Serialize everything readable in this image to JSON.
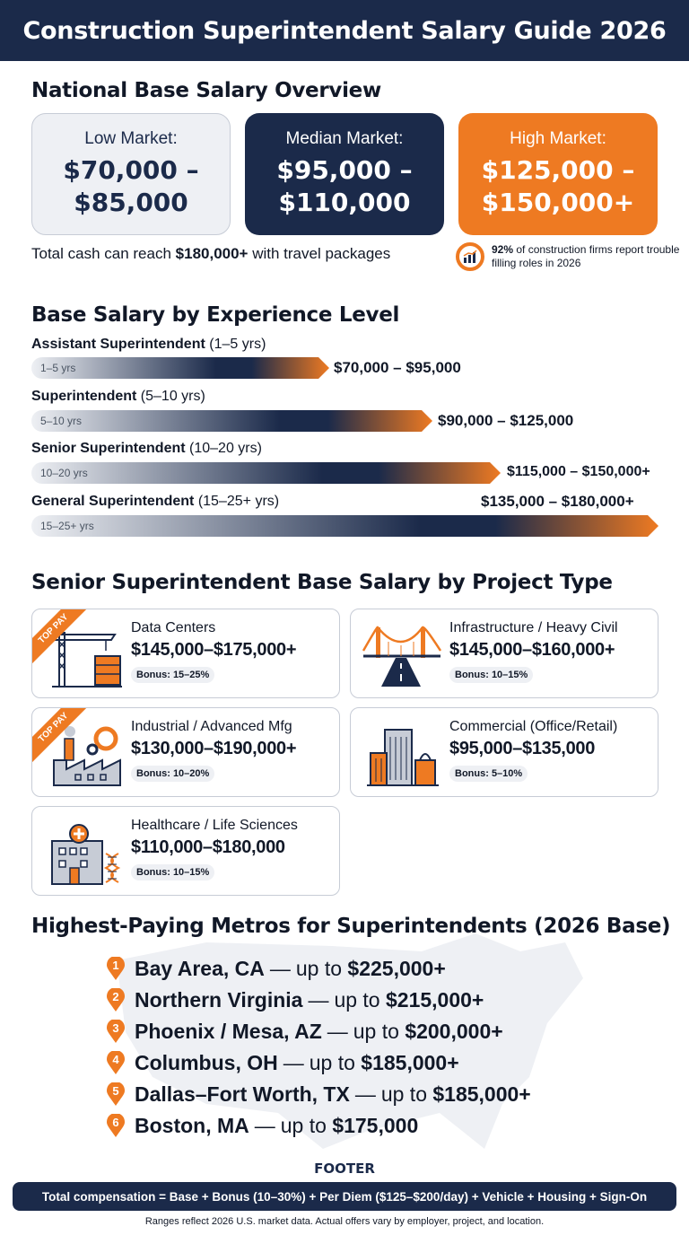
{
  "header": {
    "title": "Construction Superintendent Salary Guide 2026"
  },
  "overview": {
    "title": "National Base Salary Overview",
    "cards": [
      {
        "label": "Low Market:",
        "line1": "$70,000 –",
        "line2": "$85,000"
      },
      {
        "label": "Median Market:",
        "line1": "$95,000 –",
        "line2": "$110,000"
      },
      {
        "label": "High Market:",
        "line1": "$125,000 –",
        "line2": "$150,000+"
      }
    ],
    "total_cash_pre": "Total cash can reach ",
    "total_cash_amount": "$180,000+",
    "total_cash_post": " with travel packages",
    "stat_pct": "92%",
    "stat_text": " of construction firms report trouble filling roles in 2026"
  },
  "experience": {
    "title": "Base Salary by Experience Level",
    "levels": [
      {
        "role": "Assistant Superintendent",
        "years_paren": "(1–5 yrs)",
        "bar_label": "1–5 yrs",
        "range": "$70,000 – $95,000"
      },
      {
        "role": "Superintendent",
        "years_paren": "(5–10 yrs)",
        "bar_label": "5–10 yrs",
        "range": "$90,000 – $125,000"
      },
      {
        "role": "Senior Superintendent",
        "years_paren": "(10–20 yrs)",
        "bar_label": "10–20 yrs",
        "range": "$115,000 – $150,000+"
      },
      {
        "role": "General Superintendent",
        "years_paren": "(15–25+ yrs)",
        "bar_label": "15–25+ yrs",
        "range": "$135,000 – $180,000+"
      }
    ]
  },
  "projects": {
    "title": "Senior Superintendent Base Salary by Project Type",
    "ribbon_text": "TOP PAY",
    "items": [
      {
        "name": "Data Centers",
        "range": "$145,000–$175,000+",
        "bonus": "Bonus: 15–25%",
        "icon": "crane-icon"
      },
      {
        "name": "Infrastructure / Heavy Civil",
        "range": "$145,000–$160,000+",
        "bonus": "Bonus: 10–15%",
        "icon": "bridge-icon"
      },
      {
        "name": "Industrial / Advanced Mfg",
        "range": "$130,000–$190,000+",
        "bonus": "Bonus: 10–20%",
        "icon": "factory-icon"
      },
      {
        "name": "Commercial (Office/Retail)",
        "range": "$95,000–$135,000",
        "bonus": "Bonus: 5–10%",
        "icon": "office-building-icon"
      },
      {
        "name": "Healthcare / Life Sciences",
        "range": "$110,000–$180,000",
        "bonus": "Bonus: 10–15%",
        "icon": "hospital-icon"
      }
    ]
  },
  "metros": {
    "title": "Highest-Paying Metros for Superintendents (2026 Base)",
    "items": [
      {
        "rank": "1",
        "city": "Bay Area, CA",
        "dash": "—",
        "upto": "up to",
        "amount": "$225,000+"
      },
      {
        "rank": "2",
        "city": "Northern Virginia",
        "dash": "—",
        "upto": "up to",
        "amount": "$215,000+"
      },
      {
        "rank": "3",
        "city": "Phoenix / Mesa, AZ",
        "dash": "—",
        "upto": "up to",
        "amount": "$200,000+"
      },
      {
        "rank": "4",
        "city": "Columbus, OH",
        "dash": "—",
        "upto": "up to",
        "amount": "$185,000+"
      },
      {
        "rank": "5",
        "city": "Dallas–Fort Worth, TX",
        "dash": "—",
        "upto": "up to",
        "amount": "$185,000+"
      },
      {
        "rank": "6",
        "city": "Boston, MA",
        "dash": "—",
        "upto": "up to",
        "amount": "$175,000"
      }
    ]
  },
  "footer": {
    "label": "FOOTER",
    "formula": "Total compensation = Base + Bonus (10–30%) + Per Diem ($125–$200/day) + Vehicle + Housing + Sign-On",
    "note": "Ranges reflect 2026 U.S. market data. Actual offers vary by employer, project, and location."
  },
  "colors": {
    "navy": "#1b2a4a",
    "orange": "#ee7a22",
    "light": "#eef0f4"
  }
}
